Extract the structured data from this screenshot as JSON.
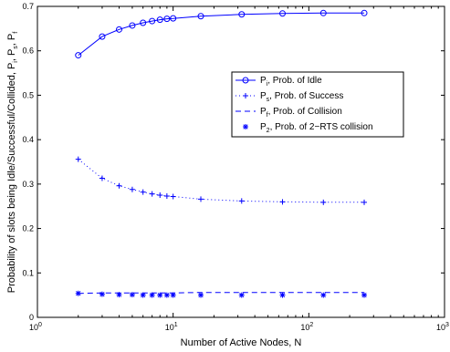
{
  "chart_data": {
    "type": "line",
    "x_scale": "log",
    "xlim": [
      1,
      1000
    ],
    "ylim": [
      0,
      0.7
    ],
    "x_ticks": [
      {
        "base": "10",
        "exp": "0",
        "value": 1
      },
      {
        "base": "10",
        "exp": "1",
        "value": 10
      },
      {
        "base": "10",
        "exp": "2",
        "value": 100
      },
      {
        "base": "10",
        "exp": "3",
        "value": 1000
      }
    ],
    "y_ticks": [
      "0",
      "0.1",
      "0.2",
      "0.3",
      "0.4",
      "0.5",
      "0.6",
      "0.7"
    ],
    "xlabel": "Number of Active Nodes, N",
    "ylabel": {
      "text": "Probability of slots being Idle/Successful/Collided, P",
      "parts": [
        {
          "sub": "i"
        },
        {
          "text": ", P"
        },
        {
          "sub": "s"
        },
        {
          "text": ", P"
        },
        {
          "sub": "f"
        }
      ]
    },
    "grid": false,
    "legend_position": "right",
    "colors": {
      "series": "#0000ff",
      "axes": "#000000"
    },
    "series": [
      {
        "sym": "P",
        "sub": "i",
        "label": ", Prob. of Idle",
        "style": "solid",
        "marker": "circle",
        "x": [
          2,
          3,
          4,
          5,
          6,
          7,
          8,
          9,
          10,
          16,
          32,
          64,
          128,
          256
        ],
        "y": [
          0.59,
          0.632,
          0.648,
          0.657,
          0.663,
          0.667,
          0.67,
          0.672,
          0.673,
          0.678,
          0.682,
          0.684,
          0.685,
          0.685
        ]
      },
      {
        "sym": "P",
        "sub": "s",
        "label": ", Prob. of Success",
        "style": "dotted",
        "marker": "plus",
        "x": [
          2,
          3,
          4,
          5,
          6,
          7,
          8,
          9,
          10,
          16,
          32,
          64,
          128,
          256
        ],
        "y": [
          0.356,
          0.313,
          0.296,
          0.288,
          0.282,
          0.278,
          0.275,
          0.273,
          0.272,
          0.266,
          0.262,
          0.26,
          0.259,
          0.259
        ]
      },
      {
        "sym": "P",
        "sub": "f",
        "label": ", Prob. of Collision",
        "style": "dashed",
        "marker": "none",
        "x": [
          2,
          3,
          4,
          5,
          6,
          7,
          8,
          9,
          10,
          16,
          32,
          64,
          128,
          256
        ],
        "y": [
          0.054,
          0.055,
          0.055,
          0.055,
          0.055,
          0.055,
          0.055,
          0.055,
          0.055,
          0.056,
          0.056,
          0.056,
          0.056,
          0.056
        ]
      },
      {
        "sym": "P",
        "sub": "2",
        "label": ", Prob. of 2−RTS collision",
        "style": "none",
        "marker": "star",
        "x": [
          2,
          3,
          4,
          5,
          6,
          7,
          8,
          9,
          10,
          16,
          32,
          64,
          128,
          256
        ],
        "y": [
          0.054,
          0.052,
          0.051,
          0.051,
          0.05,
          0.05,
          0.05,
          0.05,
          0.05,
          0.05,
          0.05,
          0.05,
          0.05,
          0.05
        ]
      }
    ]
  }
}
